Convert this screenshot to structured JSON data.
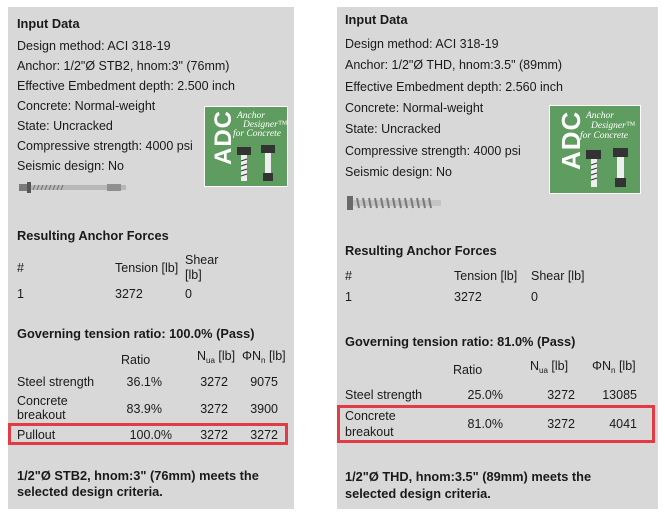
{
  "left": {
    "input_title": "Input Data",
    "lines": [
      "Design method: ACI 318-19",
      "Anchor: 1/2\"Ø STB2, hnom:3\" (76mm)",
      "Effective Embedment depth: 2.500 inch",
      "Concrete: Normal-weight",
      "State: Uncracked",
      "Compressive strength: 4000 psi",
      "Seismic design: No"
    ],
    "logo": {
      "main": "ADC",
      "sub1": "Anchor",
      "sub2": "Designer™",
      "sub3": "for Concrete"
    },
    "forces_title": "Resulting Anchor Forces",
    "forces_headers": {
      "num": "#",
      "tension": "Tension [lb]",
      "shear1": "Shear",
      "shear2": "[lb]"
    },
    "forces_row": {
      "num": "1",
      "tension": "3272",
      "shear": "0"
    },
    "gov_title": "Governing tension ratio: 100.0% (Pass)",
    "table_headers": {
      "ratio": "Ratio",
      "nua": "N",
      "nua_sub": "ua",
      "nua_unit": " [lb]",
      "phin": "ΦN",
      "phin_sub": "n",
      "phin_unit": " [lb]"
    },
    "rows": [
      {
        "label1": "Steel strength",
        "label2": "",
        "ratio": "36.1%",
        "nua": "3272",
        "phin": "9075"
      },
      {
        "label1": "Concrete",
        "label2": "breakout",
        "ratio": "83.9%",
        "nua": "3272",
        "phin": "3900"
      },
      {
        "label1": "Pullout",
        "label2": "",
        "ratio": "100.0%",
        "nua": "3272",
        "phin": "3272"
      }
    ],
    "conclusion1": "1/2\"Ø STB2, hnom:3\" (76mm) meets the",
    "conclusion2": "selected design criteria."
  },
  "right": {
    "input_title": "Input Data",
    "lines": [
      "Design method: ACI 318-19",
      "Anchor: 1/2\"Ø THD, hnom:3.5\" (89mm)",
      "Effective Embedment depth: 2.560 inch",
      "Concrete: Normal-weight",
      "State: Uncracked",
      "Compressive strength: 4000 psi",
      "Seismic design: No"
    ],
    "logo": {
      "main": "ADC",
      "sub1": "Anchor",
      "sub2": "Designer™",
      "sub3": "for Concrete"
    },
    "forces_title": "Resulting Anchor Forces",
    "forces_headers": {
      "num": "#",
      "tension": "Tension [lb]",
      "shear": "Shear [lb]"
    },
    "forces_row": {
      "num": "1",
      "tension": "3272",
      "shear": "0"
    },
    "gov_title": "Governing tension ratio: 81.0% (Pass)",
    "table_headers": {
      "ratio": "Ratio",
      "nua": "N",
      "nua_sub": "ua",
      "nua_unit": " [lb]",
      "phin": "ΦN",
      "phin_sub": "n",
      "phin_unit": " [lb]"
    },
    "rows": [
      {
        "label1": "Steel strength",
        "label2": "",
        "ratio": "25.0%",
        "nua": "3272",
        "phin": "13085"
      },
      {
        "label1": "Concrete",
        "label2": "breakout",
        "ratio": "81.0%",
        "nua": "3272",
        "phin": "4041"
      }
    ],
    "conclusion1": "1/2\"Ø THD, hnom:3.5\" (89mm) meets the",
    "conclusion2": "selected design criteria."
  }
}
